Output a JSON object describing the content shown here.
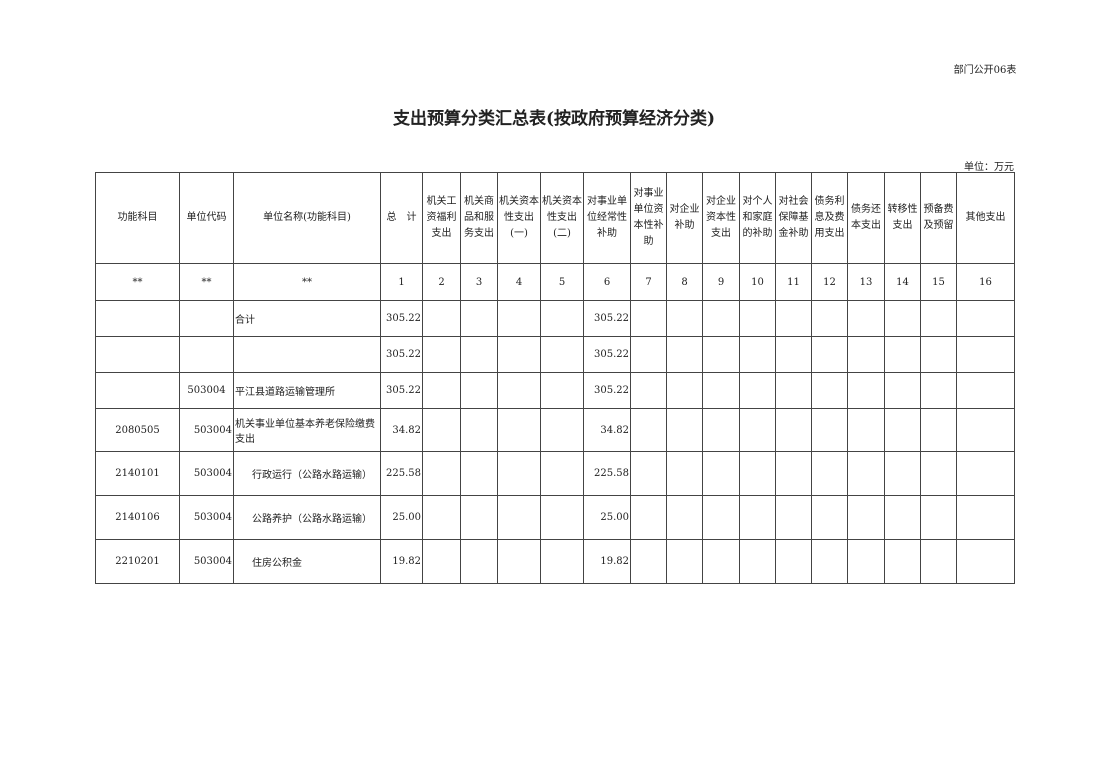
{
  "doc_number": "部门公开06表",
  "title": "支出预算分类汇总表(按政府预算经济分类)",
  "unit": "单位：万元",
  "headers": [
    "功能科目",
    "单位代码",
    "单位名称(功能科目)",
    "总　计",
    "机关工资福利支出",
    "机关商品和服务支出",
    "机关资本性支出(一)",
    "机关资本性支出(二)",
    "对事业单位经常性补助",
    "对事业单位资本性补助",
    "对企业补助",
    "对企业资本性支出",
    "对个人和家庭的补助",
    "对社会保障基金补助",
    "债务利息及费用支出",
    "债务还本支出",
    "转移性支出",
    "预备费及预留",
    "其他支出"
  ],
  "index_row": [
    "**",
    "**",
    "**",
    "1",
    "2",
    "3",
    "4",
    "5",
    "6",
    "7",
    "8",
    "9",
    "10",
    "11",
    "12",
    "13",
    "14",
    "15",
    "16"
  ],
  "rows": [
    {
      "func": "",
      "code": "",
      "name": "合计",
      "total": "305.22",
      "c6": "305.22"
    },
    {
      "func": "",
      "code": "",
      "name": "",
      "total": "305.22",
      "c6": "305.22"
    },
    {
      "func": "",
      "code": "503004",
      "name": "平江县道路运输管理所",
      "total": "305.22",
      "c6": "305.22"
    },
    {
      "func": "2080505",
      "code": "503004",
      "name": "机关事业单位基本养老保险缴费支出",
      "total": "34.82",
      "c6": "34.82"
    },
    {
      "func": "2140101",
      "code": "503004",
      "name": "行政运行（公路水路运输）",
      "total": "225.58",
      "c6": "225.58"
    },
    {
      "func": "2140106",
      "code": "503004",
      "name": "公路养护（公路水路运输）",
      "total": "25.00",
      "c6": "25.00"
    },
    {
      "func": "2210201",
      "code": "503004",
      "name": "住房公积金",
      "total": "19.82",
      "c6": "19.82"
    }
  ]
}
